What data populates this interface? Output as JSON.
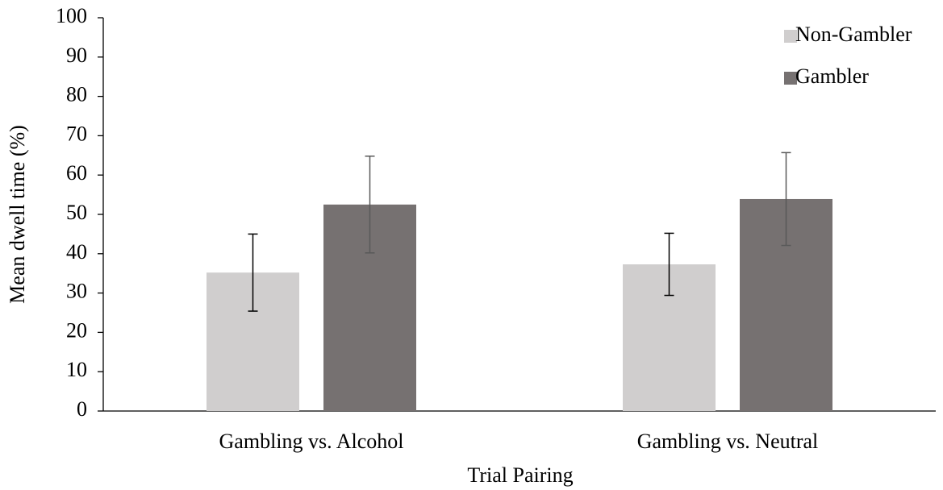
{
  "chart_data": {
    "type": "bar",
    "xlabel": "Trial Pairing",
    "ylabel": "Mean dwell time (%)",
    "categories": [
      "Gambling vs. Alcohol",
      "Gambling vs. Neutral"
    ],
    "series": [
      {
        "name": "Non-Gambler",
        "color": "#d0cece",
        "error_color": "#000000",
        "values": [
          35.2,
          37.3
        ],
        "errors": [
          9.8,
          7.9
        ]
      },
      {
        "name": "Gambler",
        "color": "#767171",
        "error_color": "#595959",
        "values": [
          52.5,
          53.9
        ],
        "errors": [
          12.3,
          11.8
        ]
      }
    ],
    "ylim": [
      0,
      100
    ],
    "yticks": [
      0,
      10,
      20,
      30,
      40,
      50,
      60,
      70,
      80,
      90,
      100
    ],
    "grid": false,
    "legend": "upper right"
  }
}
